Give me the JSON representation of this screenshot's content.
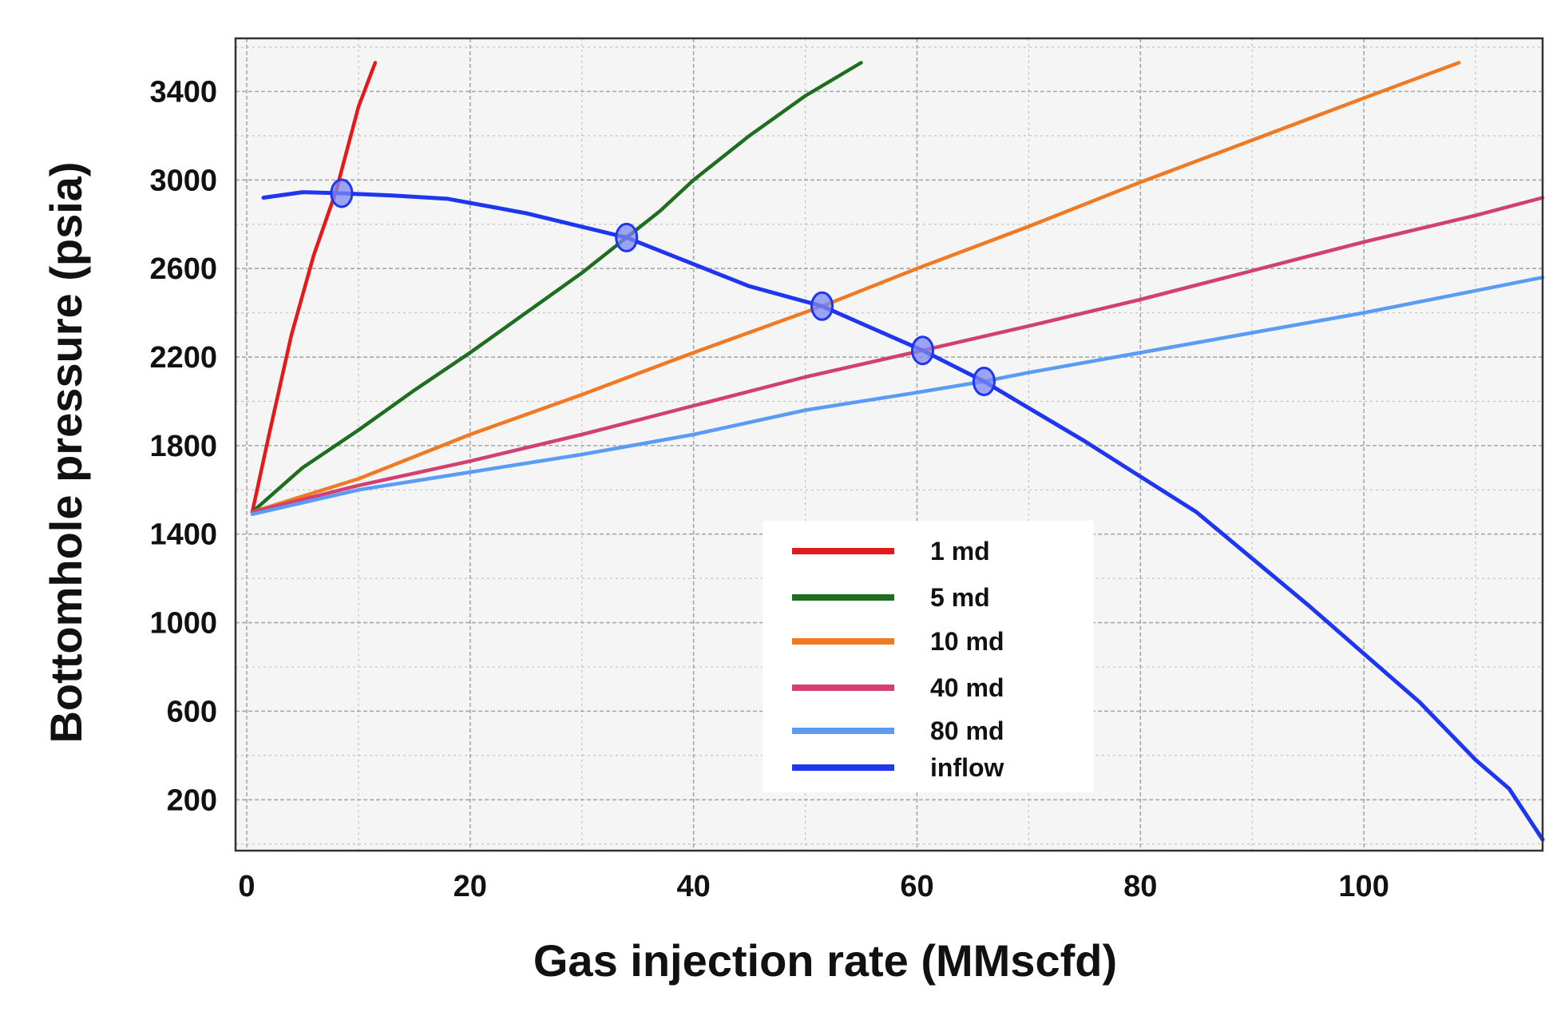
{
  "chart_data": {
    "type": "line",
    "xlabel": "Gas injection rate (MMscfd)",
    "ylabel": "Bottomhole pressure (psia)",
    "xlim": [
      -1,
      116
    ],
    "ylim": [
      -30,
      3640
    ],
    "x_ticks": [
      0,
      20,
      40,
      60,
      80,
      100
    ],
    "x_tick_labels": [
      "0",
      "20",
      "40",
      "60",
      "80",
      "100"
    ],
    "y_ticks": [
      200,
      600,
      1000,
      1400,
      1800,
      2200,
      2600,
      3000,
      3400
    ],
    "y_tick_labels": [
      "200",
      "600",
      "1000",
      "1400",
      "1800",
      "2200",
      "2600",
      "3000",
      "3400"
    ],
    "grid": true,
    "legend_position": "bottom-center",
    "series": [
      {
        "name": "1 md",
        "color": "#e31a1c",
        "x": [
          0.5,
          2,
          4,
          6,
          8,
          10,
          11.5
        ],
        "y": [
          1500,
          1850,
          2300,
          2660,
          2950,
          3330,
          3530
        ]
      },
      {
        "name": "5 md",
        "color": "#1f6e1f",
        "x": [
          0.5,
          5,
          10,
          15,
          20,
          25,
          30,
          34,
          37,
          40,
          45,
          50,
          55
        ],
        "y": [
          1500,
          1700,
          1870,
          2050,
          2220,
          2400,
          2580,
          2740,
          2860,
          3000,
          3200,
          3380,
          3530
        ]
      },
      {
        "name": "10 md",
        "color": "#f07a24",
        "x": [
          0.5,
          10,
          20,
          30,
          40,
          51.5,
          60,
          70,
          80,
          90,
          100,
          108.5
        ],
        "y": [
          1500,
          1650,
          1850,
          2030,
          2220,
          2430,
          2600,
          2790,
          2990,
          3180,
          3370,
          3530
        ]
      },
      {
        "name": "40 md",
        "color": "#d13f73",
        "x": [
          0.5,
          10,
          20,
          30,
          40,
          50,
          60.5,
          70,
          80,
          90,
          100,
          110,
          116
        ],
        "y": [
          1500,
          1620,
          1730,
          1850,
          1980,
          2110,
          2230,
          2340,
          2460,
          2590,
          2720,
          2840,
          2920
        ]
      },
      {
        "name": "80 md",
        "color": "#5a9cf5",
        "x": [
          0.5,
          10,
          20,
          30,
          40,
          50,
          60,
          66,
          70,
          80,
          90,
          100,
          110,
          116
        ],
        "y": [
          1490,
          1600,
          1680,
          1760,
          1850,
          1960,
          2040,
          2090,
          2130,
          2220,
          2310,
          2400,
          2500,
          2560
        ]
      },
      {
        "name": "inflow",
        "color": "#1f36f0",
        "x": [
          1.5,
          5,
          8.5,
          13,
          18,
          25,
          34,
          40,
          45,
          51.5,
          56,
          60.5,
          66,
          70,
          75,
          80,
          85,
          90,
          95,
          100,
          105,
          110,
          113,
          116
        ],
        "y": [
          2920,
          2945,
          2940,
          2930,
          2915,
          2850,
          2740,
          2620,
          2520,
          2430,
          2330,
          2230,
          2090,
          1970,
          1820,
          1660,
          1500,
          1290,
          1080,
          860,
          640,
          380,
          250,
          20
        ]
      }
    ],
    "intersections": [
      {
        "x": 8.5,
        "y": 2940
      },
      {
        "x": 34,
        "y": 2740
      },
      {
        "x": 51.5,
        "y": 2430
      },
      {
        "x": 60.5,
        "y": 2230
      },
      {
        "x": 66,
        "y": 2090
      }
    ]
  },
  "style": {
    "plot_background": "#f5f5f5",
    "grid_color": "#9a9a9a",
    "frame_color": "#333333",
    "marker_fill": "#7b88f2",
    "marker_stroke": "#1f36f0"
  }
}
